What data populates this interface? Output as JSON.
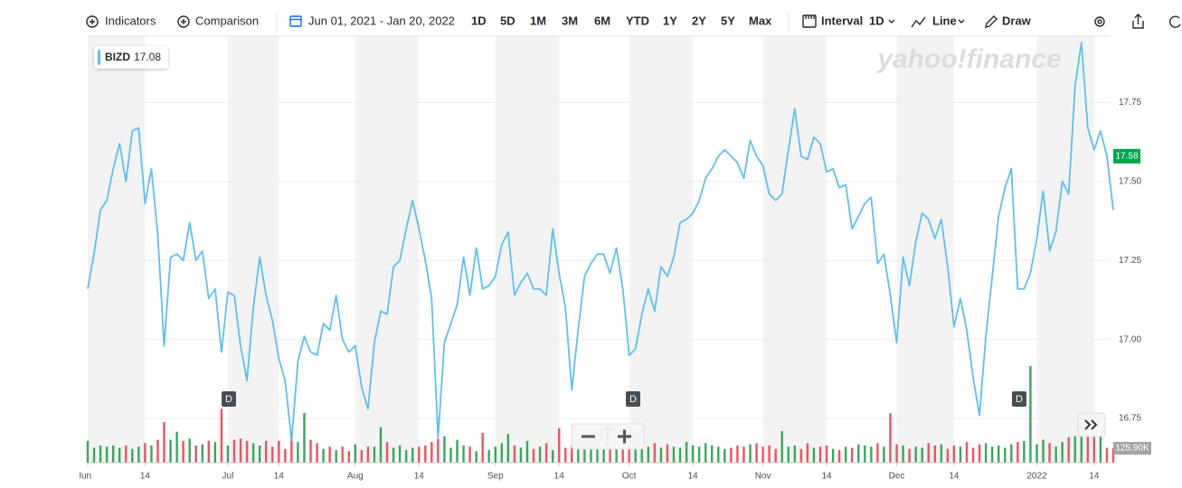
{
  "toolbar": {
    "indicators": "Indicators",
    "comparison": "Comparison",
    "date_range": "Jun 01, 2021 - Jan 20, 2022",
    "ranges": [
      "1D",
      "5D",
      "1M",
      "3M",
      "6M",
      "YTD",
      "1Y",
      "2Y",
      "5Y",
      "Max"
    ],
    "interval": "Interval",
    "interval_value": "1D",
    "chart_style": "Line",
    "draw": "Draw"
  },
  "chart_data": {
    "type": "line",
    "watermark": "yahoo!finance",
    "dividend_label": "D",
    "hover_value": 17.08,
    "price_tag": 17.58,
    "categories": [
      "Jun",
      null,
      null,
      null,
      null,
      null,
      null,
      null,
      null,
      "14",
      null,
      null,
      null,
      null,
      null,
      null,
      null,
      null,
      null,
      null,
      null,
      null,
      "Jul",
      null,
      null,
      null,
      null,
      null,
      null,
      null,
      "14",
      null,
      null,
      null,
      null,
      null,
      null,
      null,
      null,
      null,
      null,
      null,
      "Aug",
      null,
      null,
      null,
      null,
      null,
      null,
      null,
      null,
      null,
      "14",
      null,
      null,
      null,
      null,
      null,
      null,
      null,
      null,
      null,
      null,
      null,
      "Sep",
      null,
      null,
      null,
      null,
      null,
      null,
      null,
      null,
      null,
      "14",
      null,
      null,
      null,
      null,
      null,
      null,
      null,
      null,
      null,
      null,
      "Oct",
      null,
      null,
      null,
      null,
      null,
      null,
      null,
      null,
      null,
      "14",
      null,
      null,
      null,
      null,
      null,
      null,
      null,
      null,
      null,
      null,
      "Nov",
      null,
      null,
      null,
      null,
      null,
      null,
      null,
      null,
      null,
      "14",
      null,
      null,
      null,
      null,
      null,
      null,
      null,
      null,
      null,
      null,
      "Dec",
      null,
      null,
      null,
      null,
      null,
      null,
      null,
      null,
      "14",
      null,
      null,
      null,
      null,
      null,
      null,
      null,
      null,
      null,
      null,
      null,
      null,
      "2022",
      null,
      null,
      null,
      null,
      null,
      null,
      null,
      null,
      "14",
      null,
      null,
      null
    ],
    "series": [
      {
        "name": "BIZD",
        "color": "#5bc0f2",
        "values": [
          17.16,
          17.27,
          17.41,
          17.44,
          17.54,
          17.62,
          17.5,
          17.66,
          17.67,
          17.43,
          17.54,
          17.33,
          16.98,
          17.26,
          17.27,
          17.25,
          17.37,
          17.25,
          17.28,
          17.13,
          17.16,
          16.96,
          17.15,
          17.14,
          16.98,
          16.87,
          17.1,
          17.26,
          17.14,
          17.06,
          16.94,
          16.87,
          16.68,
          16.93,
          17.01,
          16.96,
          16.95,
          17.05,
          17.03,
          17.14,
          17.0,
          16.96,
          16.98,
          16.85,
          16.78,
          16.99,
          17.09,
          17.08,
          17.23,
          17.25,
          17.35,
          17.44,
          17.35,
          17.25,
          17.13,
          16.69,
          16.99,
          17.05,
          17.11,
          17.26,
          17.14,
          17.29,
          17.16,
          17.17,
          17.2,
          17.3,
          17.34,
          17.14,
          17.18,
          17.21,
          17.16,
          17.16,
          17.14,
          17.35,
          17.21,
          17.1,
          16.84,
          17.03,
          17.2,
          17.24,
          17.27,
          17.27,
          17.21,
          17.29,
          17.16,
          16.95,
          16.97,
          17.08,
          17.16,
          17.09,
          17.23,
          17.2,
          17.26,
          17.37,
          17.38,
          17.4,
          17.44,
          17.51,
          17.54,
          17.58,
          17.6,
          17.58,
          17.56,
          17.51,
          17.63,
          17.58,
          17.55,
          17.46,
          17.44,
          17.46,
          17.6,
          17.73,
          17.58,
          17.57,
          17.64,
          17.62,
          17.53,
          17.54,
          17.48,
          17.49,
          17.35,
          17.39,
          17.43,
          17.45,
          17.24,
          17.27,
          17.14,
          16.99,
          17.26,
          17.17,
          17.31,
          17.4,
          17.38,
          17.32,
          17.38,
          17.23,
          17.04,
          17.13,
          17.03,
          16.88,
          16.76,
          17.01,
          17.2,
          17.39,
          17.48,
          17.54,
          17.16,
          17.16,
          17.21,
          17.32,
          17.47,
          17.28,
          17.34,
          17.5,
          17.46,
          17.8,
          17.94,
          17.67,
          17.6,
          17.66,
          17.58,
          17.41
        ]
      }
    ],
    "volume": {
      "up_color": "#35a85a",
      "down_color": "#f0505e",
      "ylim": [
        0,
        3715
      ],
      "values": [
        190,
        130,
        150,
        140,
        150,
        130,
        150,
        120,
        140,
        170,
        150,
        200,
        354,
        200,
        270,
        190,
        210,
        150,
        160,
        190,
        180,
        470,
        150,
        200,
        210,
        190,
        170,
        150,
        190,
        140,
        190,
        120,
        250,
        180,
        433,
        200,
        170,
        120,
        140,
        110,
        140,
        100,
        160,
        110,
        140,
        140,
        310,
        180,
        130,
        150,
        110,
        130,
        140,
        150,
        180,
        210,
        230,
        130,
        200,
        150,
        140,
        100,
        260,
        110,
        140,
        170,
        250,
        150,
        130,
        190,
        120,
        140,
        170,
        110,
        300,
        130,
        150,
        120,
        140,
        170,
        160,
        150,
        170,
        190,
        140,
        160,
        200,
        150,
        140,
        170,
        130,
        160,
        140,
        130,
        180,
        150,
        140,
        170,
        150,
        140,
        120,
        130,
        150,
        140,
        160,
        170,
        140,
        150,
        120,
        275,
        140,
        150,
        120,
        170,
        130,
        140,
        150,
        120,
        110,
        140,
        130,
        160,
        150,
        140,
        170,
        140,
        430,
        160,
        150,
        120,
        140,
        130,
        170,
        150,
        160,
        120,
        150,
        140,
        180,
        130,
        160,
        170,
        140,
        150,
        130,
        160,
        180,
        190,
        842,
        160,
        200,
        170,
        140,
        180,
        220,
        230,
        360,
        290,
        330,
        250,
        130,
        125.9
      ],
      "value_labels": [
        null,
        null,
        null,
        null,
        null,
        null,
        null,
        null,
        null,
        null,
        null,
        null,
        null,
        null,
        null,
        null,
        null,
        null,
        null,
        null,
        null,
        null,
        null,
        null,
        null,
        null,
        null,
        null,
        null,
        null,
        null,
        null,
        null,
        null,
        null,
        null,
        null,
        null,
        null,
        null,
        null,
        null,
        null,
        null,
        null,
        null,
        null,
        null,
        null,
        null,
        null,
        null,
        null,
        null,
        null,
        null,
        null,
        null,
        null,
        null,
        null,
        null,
        null,
        null,
        null,
        null,
        null,
        null,
        null,
        null,
        null,
        null,
        null,
        null,
        null,
        null,
        null,
        null,
        null,
        null,
        null,
        null,
        null,
        null,
        null,
        null,
        null,
        null,
        null,
        null,
        null,
        null,
        null,
        null,
        null,
        null,
        null,
        null,
        null,
        null,
        null,
        null,
        null,
        null,
        null,
        null,
        null,
        null,
        null,
        null,
        null,
        null,
        null,
        null,
        null,
        null,
        null,
        null,
        null,
        null,
        null,
        null,
        null,
        null,
        null,
        null,
        null,
        null,
        null,
        null,
        null,
        null,
        null,
        null,
        null,
        null,
        null,
        null,
        null,
        null,
        null,
        null,
        null,
        null,
        null,
        null,
        null,
        null,
        null,
        null,
        null,
        null,
        null,
        null,
        null,
        null,
        null,
        null,
        null,
        null,
        null,
        "125.90K"
      ]
    },
    "ylim": [
      16.61,
      17.96
    ],
    "yticks": [
      16.75,
      {
        "value": 17,
        "label": "17.00"
      },
      17.25,
      {
        "value": 17.5,
        "label": "17.50"
      },
      17.75
    ],
    "grid": true
  }
}
